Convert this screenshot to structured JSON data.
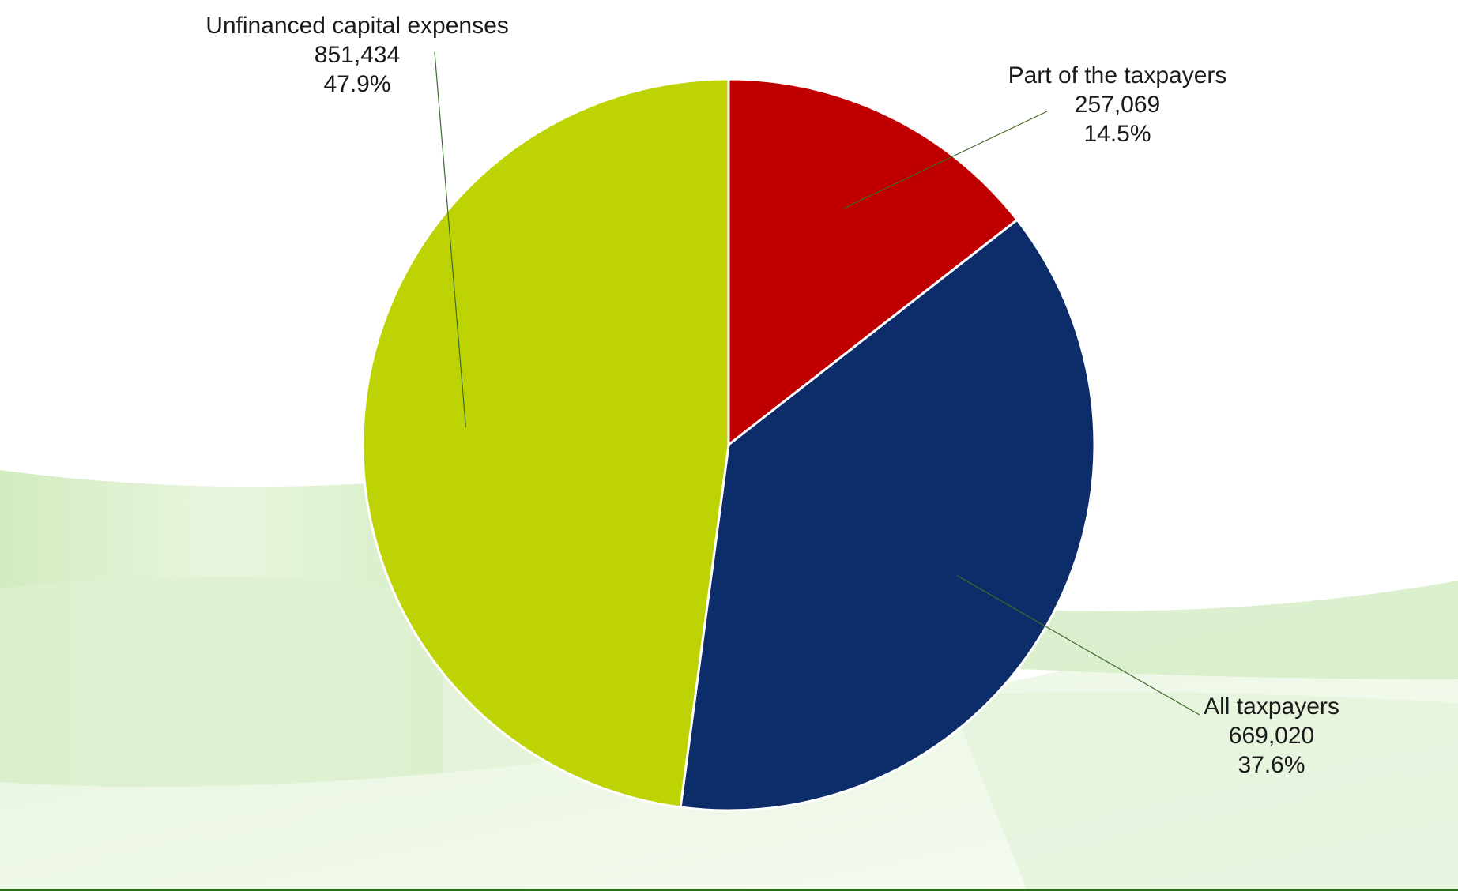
{
  "chart_data": {
    "type": "pie",
    "start_angle_deg": 0,
    "direction": "clockwise",
    "legend": "none",
    "slices": [
      {
        "name": "Part of the taxpayers",
        "value": 257069,
        "value_label": "257,069",
        "percent_label": "14.5%",
        "color": "#C00000"
      },
      {
        "name": "All taxpayers",
        "value": 669020,
        "value_label": "669,020",
        "percent_label": "37.6%",
        "color": "#0C2D69"
      },
      {
        "name": "Unfinanced capital expenses",
        "value": 851434,
        "value_label": "851,434",
        "percent_label": "47.9%",
        "color": "#BDD304"
      }
    ]
  },
  "colors": {
    "background_wave": "#CDEBB9",
    "leader_line": "#3E6B2A",
    "slice_border": "#FFFFFF"
  }
}
